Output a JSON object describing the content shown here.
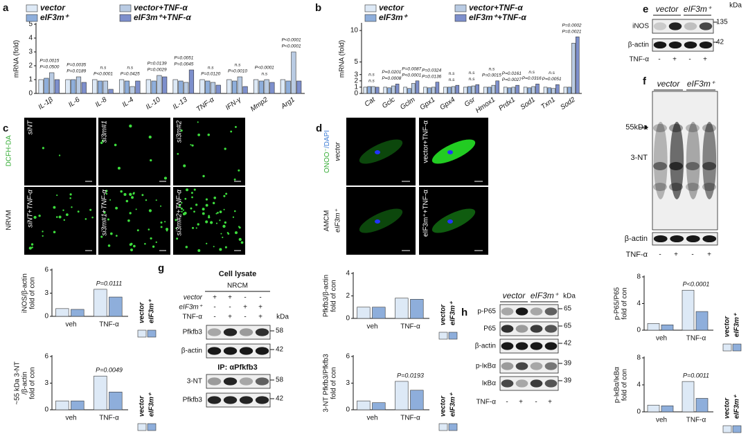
{
  "chart_data": [
    {
      "type": "bar",
      "panel": "a",
      "y_label": [
        "mRNA (fold)"
      ],
      "categories": [
        "IL-1β",
        "IL-6",
        "IL-8",
        "IL-4",
        "IL-10",
        "IL-13",
        "TNF-α",
        "IFN-γ",
        "Mmp2",
        "Arg1"
      ],
      "series": [
        {
          "name": "vector",
          "color": "#dde9f6",
          "values": [
            1.0,
            1.0,
            1.0,
            1.0,
            1.0,
            1.0,
            1.0,
            1.0,
            1.0,
            1.0
          ]
        },
        {
          "name": "eIF3m⁺",
          "color": "#8eaedb",
          "values": [
            1.1,
            1.0,
            0.9,
            0.9,
            0.9,
            0.9,
            0.9,
            0.9,
            0.9,
            0.9
          ]
        },
        {
          "name": "vector+TNF-α",
          "color": "#b9cbe3",
          "values": [
            1.5,
            1.2,
            0.9,
            0.5,
            1.3,
            0.8,
            0.8,
            1.2,
            1.0,
            3.0
          ]
        },
        {
          "name": "eIF3m⁺+TNF-α",
          "color": "#7d8fcc",
          "values": [
            1.0,
            0.8,
            0.3,
            0.9,
            1.2,
            1.7,
            0.6,
            0.5,
            0.8,
            0.9
          ]
        }
      ],
      "ylim": [
        0,
        5
      ],
      "yticks": [
        0,
        1,
        2,
        3,
        4,
        5
      ],
      "annotations": [
        [
          "P=0.0015",
          "P=0.0500"
        ],
        [
          "P=0.0035",
          "P=0.0189"
        ],
        [
          "n.s",
          "P<0.0001"
        ],
        [
          "n.s",
          "P=0.0425"
        ],
        [
          "P=0.0139",
          "P=0.0029"
        ],
        [
          "P=0.0051",
          "P=0.0045"
        ],
        [
          "n.s",
          "P=0.0120"
        ],
        [
          "n.s",
          "P=0.0010"
        ],
        [
          "P<0.0001",
          "n.s"
        ],
        [
          "P<0.0001",
          "P<0.0001"
        ]
      ]
    },
    {
      "type": "bar",
      "panel": "b",
      "y_label": [
        "mRNA (fold)"
      ],
      "categories": [
        "Cat",
        "Gclc",
        "Gclm",
        "Gpx1",
        "Gpx4",
        "Gsr",
        "Hmox1",
        "Prdx1",
        "Sod1",
        "Txn1",
        "Sod2"
      ],
      "series": [
        {
          "name": "vector",
          "color": "#dde9f6",
          "values": [
            1.0,
            1.0,
            1.0,
            1.0,
            1.0,
            1.0,
            1.0,
            1.0,
            1.0,
            1.0,
            1.0
          ]
        },
        {
          "name": "eIF3m⁺",
          "color": "#8eaedb",
          "values": [
            1.1,
            0.9,
            0.8,
            0.9,
            1.0,
            1.1,
            1.0,
            0.9,
            0.9,
            0.9,
            1.0
          ]
        },
        {
          "name": "vector+TNF-α",
          "color": "#b9cbe3",
          "values": [
            1.1,
            1.2,
            1.6,
            1.0,
            1.1,
            1.2,
            1.3,
            1.0,
            1.1,
            0.8,
            8.0
          ]
        },
        {
          "name": "eIF3m⁺+TNF-α",
          "color": "#7d8fcc",
          "values": [
            1.0,
            1.5,
            2.0,
            1.8,
            1.3,
            1.4,
            2.0,
            1.3,
            1.5,
            1.4,
            9.0
          ]
        }
      ],
      "ylim": [
        0,
        11
      ],
      "yticks": [
        0,
        1,
        2,
        3,
        5,
        10
      ],
      "annotations": [
        [
          "n.s",
          "n.s"
        ],
        [
          "P=0.0201",
          "P=0.0008"
        ],
        [
          "P=0.0087",
          "P<0.0001"
        ],
        [
          "P=0.0324",
          "P=0.0136"
        ],
        [
          "n.s",
          "n.s"
        ],
        [
          "n.s",
          "n.s"
        ],
        [
          "n.s",
          "P=0.0015"
        ],
        [
          "P=0.0161",
          "P=0.0027"
        ],
        [
          "n.s",
          "P=0.0316"
        ],
        [
          "n.s",
          "P=0.0051"
        ],
        [
          "P=0.0002",
          "P=0.0021"
        ]
      ]
    },
    {
      "type": "bar",
      "y_label": [
        "iNOS/β-actin",
        "fold of con"
      ],
      "categories": [
        "veh",
        "TNF-α"
      ],
      "series": [
        {
          "name": "vector",
          "color": "#dde9f6",
          "values": [
            1.0,
            3.5
          ]
        },
        {
          "name": "eIF3m⁺",
          "color": "#8eaedb",
          "values": [
            0.9,
            2.5
          ]
        }
      ],
      "ylim": [
        0,
        6
      ],
      "yticks": [
        0,
        3,
        6
      ],
      "annotations": [
        [],
        [
          "P=0.0111"
        ]
      ]
    },
    {
      "type": "bar",
      "y_label": [
        "~55 kDa 3-NT",
        "/β-actin",
        "fold of con"
      ],
      "categories": [
        "veh",
        "TNF-α"
      ],
      "series": [
        {
          "name": "vector",
          "color": "#dde9f6",
          "values": [
            1.0,
            3.8
          ]
        },
        {
          "name": "eIF3m⁺",
          "color": "#8eaedb",
          "values": [
            1.0,
            2.0
          ]
        }
      ],
      "ylim": [
        0,
        6
      ],
      "yticks": [
        0,
        3,
        6
      ],
      "annotations": [
        [],
        [
          "P=0.0049"
        ]
      ]
    },
    {
      "type": "bar",
      "y_label": [
        "Pfkfb3/β-actin",
        "fold of con"
      ],
      "categories": [
        "veh",
        "TNF-α"
      ],
      "series": [
        {
          "name": "vector",
          "color": "#dde9f6",
          "values": [
            1.0,
            1.8
          ]
        },
        {
          "name": "eIF3m⁺",
          "color": "#8eaedb",
          "values": [
            1.0,
            1.7
          ]
        }
      ],
      "ylim": [
        0,
        4
      ],
      "yticks": [
        0,
        2,
        4
      ]
    },
    {
      "type": "bar",
      "y_label": [
        "3-NT Pfkfb3/Pfkfb3",
        "fold of con"
      ],
      "categories": [
        "veh",
        "TNF-α"
      ],
      "series": [
        {
          "name": "vector",
          "color": "#dde9f6",
          "values": [
            1.0,
            3.2
          ]
        },
        {
          "name": "eIF3m⁺",
          "color": "#8eaedb",
          "values": [
            0.8,
            2.2
          ]
        }
      ],
      "ylim": [
        0,
        6
      ],
      "yticks": [
        0,
        3,
        6
      ],
      "annotations": [
        [],
        [
          "P=0.0193"
        ]
      ]
    },
    {
      "type": "bar",
      "y_label": [
        "p-P65/P65",
        "fold of con"
      ],
      "categories": [
        "veh",
        "TNF-α"
      ],
      "series": [
        {
          "name": "vector",
          "color": "#dde9f6",
          "values": [
            1.0,
            6.0
          ]
        },
        {
          "name": "eIF3m⁺",
          "color": "#8eaedb",
          "values": [
            0.8,
            2.8
          ]
        }
      ],
      "ylim": [
        0,
        8
      ],
      "yticks": [
        0,
        4,
        8
      ],
      "annotations": [
        [],
        [
          "P<0.0001"
        ]
      ]
    },
    {
      "type": "bar",
      "y_label": [
        "p-IκBα/IκBα",
        "fold of con"
      ],
      "categories": [
        "veh",
        "TNF-α"
      ],
      "series": [
        {
          "name": "vector",
          "color": "#dde9f6",
          "values": [
            1.0,
            4.5
          ]
        },
        {
          "name": "eIF3m⁺",
          "color": "#8eaedb",
          "values": [
            0.9,
            2.0
          ]
        }
      ],
      "ylim": [
        0,
        8
      ],
      "yticks": [
        0,
        4,
        8
      ],
      "annotations": [
        [],
        [
          "P=0.0011"
        ]
      ]
    }
  ],
  "letters": [
    "c",
    "d",
    "e",
    "f",
    "g",
    "h"
  ],
  "micrographs": {
    "c": {
      "stain": "DCFH-DA",
      "cell": "NRVM",
      "tiles": [
        "siNT",
        "si3m#1",
        "si3m#2",
        "siNT+TNF-α",
        "si3m#1+TNF-α",
        "si3m#2+TNF-α"
      ]
    },
    "d": {
      "stain": "ONOO⁻",
      "counterstain": "/DAPI",
      "cell": "AMCM",
      "rows": [
        "vector",
        "eIF3m⁺"
      ],
      "tiles": [
        "vector+TNF-α",
        "eIF3m⁺+TNF-α"
      ]
    }
  },
  "blots": {
    "e": {
      "columns": [
        "vector",
        "eIF3m⁺"
      ],
      "unit": "kDa",
      "rows": [
        {
          "label": "iNOS",
          "marker": "135"
        },
        {
          "label": "β-actin",
          "marker": "42"
        }
      ],
      "treatment": {
        "label": "TNF-α",
        "signs": [
          "-",
          "+",
          "-",
          "+"
        ]
      }
    },
    "f": {
      "columns": [
        "vector",
        "eIF3m⁺"
      ],
      "marker": "55kDa",
      "rows": [
        {
          "label": "3-NT"
        },
        {
          "label": "β-actin"
        }
      ],
      "treatment": {
        "label": "TNF-α",
        "signs": [
          "-",
          "+",
          "-",
          "+"
        ]
      }
    },
    "g": {
      "title": "Cell lysate",
      "cell": "NRCM",
      "conditions": [
        {
          "label": "vector",
          "signs": [
            "+",
            "+",
            "-",
            "-"
          ]
        },
        {
          "label": "eIF3m⁺",
          "signs": [
            "-",
            "-",
            "+",
            "+"
          ]
        },
        {
          "label": "TNF-α",
          "signs": [
            "-",
            "+",
            "-",
            "+"
          ]
        }
      ],
      "unit": "kDa",
      "rows": [
        {
          "label": "Pfkfb3",
          "marker": "58"
        },
        {
          "label": "β-actin",
          "marker": "42"
        }
      ],
      "ip": "IP: αPfkfb3",
      "ip_rows": [
        {
          "label": "3-NT",
          "marker": "58"
        },
        {
          "label": "Pfkfb3",
          "marker": "42"
        }
      ]
    },
    "h": {
      "columns": [
        "vector",
        "eIF3m⁺"
      ],
      "unit": "kDa",
      "rows": [
        {
          "label": "p-P65",
          "marker": "65"
        },
        {
          "label": "P65",
          "marker": "65"
        },
        {
          "label": "β-actin",
          "marker": "42"
        },
        {
          "label": "p-IκBα",
          "marker": "39"
        },
        {
          "label": "IκBα",
          "marker": "39"
        }
      ],
      "treatment": {
        "label": "TNF-α",
        "signs": [
          "-",
          "+",
          "-",
          "+"
        ]
      }
    }
  }
}
